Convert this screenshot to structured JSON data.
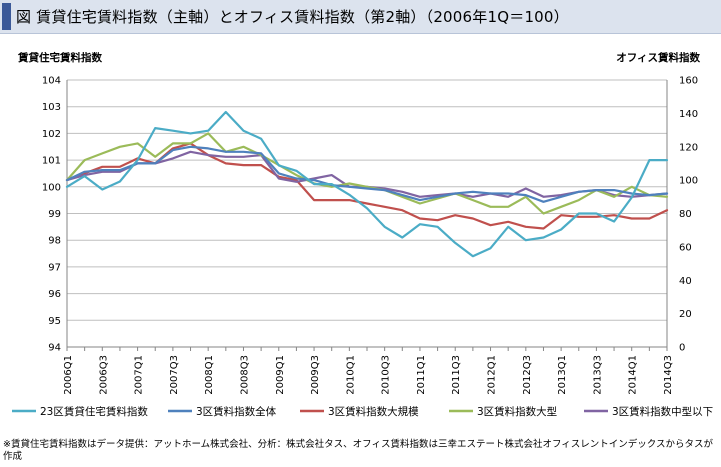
{
  "header": {
    "title": "図 賃貸住宅賃料指数（主軸）とオフィス賃料指数（第2軸）（2006年1Q＝100）"
  },
  "footnote": "※賃貸住宅賃料指数はデータ提供：アットホーム株式会社、分析：株式会社タス、オフィス賃料指数は三幸エステート株式会社オフィスレントインデックスからタスが作成",
  "colors": {
    "23区賃貸住宅賃料指数": "#4bacc6",
    "3区賃料指数全体": "#4f81bd",
    "3区賃料指数大規模": "#c0504d",
    "3区賃料指数大型": "#9bbb59",
    "3区賃料指数中型以下": "#8064a2"
  },
  "chart_data": {
    "type": "line",
    "title": "",
    "ylabel_left": "賃貸住宅賃料指数",
    "ylabel_right": "オフィス賃料指数",
    "ylim_left": [
      94,
      104
    ],
    "ylim_right": [
      0,
      160
    ],
    "yticks_left": [
      94,
      95,
      96,
      97,
      98,
      99,
      100,
      101,
      102,
      103,
      104
    ],
    "yticks_right": [
      0,
      20,
      40,
      60,
      80,
      100,
      120,
      140,
      160
    ],
    "grid": true,
    "legend_position": "bottom",
    "categories": [
      "2006Q1",
      "2006Q2",
      "2006Q3",
      "2006Q4",
      "2007Q1",
      "2007Q2",
      "2007Q3",
      "2007Q4",
      "2008Q1",
      "2008Q2",
      "2008Q3",
      "2008Q4",
      "2009Q1",
      "2009Q2",
      "2009Q3",
      "2009Q4",
      "2010Q1",
      "2010Q2",
      "2010Q3",
      "2010Q4",
      "2011Q1",
      "2011Q2",
      "2011Q3",
      "2011Q4",
      "2012Q1",
      "2012Q2",
      "2012Q3",
      "2012Q4",
      "2013Q1",
      "2013Q2",
      "2013Q3",
      "2013Q4",
      "2014Q1",
      "2014Q2",
      "2014Q3"
    ],
    "tick_labels": [
      "2006Q1",
      "2006Q3",
      "2007Q1",
      "2007Q3",
      "2008Q1",
      "2008Q3",
      "2009Q1",
      "2009Q3",
      "2010Q1",
      "2010Q3",
      "2011Q1",
      "2011Q3",
      "2012Q1",
      "2012Q3",
      "2013Q1",
      "2013Q3",
      "2014Q1",
      "2014Q3"
    ],
    "series": [
      {
        "name": "23区賃貸住宅賃料指数",
        "axis": "left",
        "values": [
          100.0,
          100.4,
          99.9,
          100.2,
          101.0,
          102.2,
          102.1,
          102.0,
          102.1,
          102.8,
          102.1,
          101.8,
          100.8,
          100.6,
          100.1,
          100.1,
          99.7,
          99.2,
          98.5,
          98.1,
          98.6,
          98.5,
          97.9,
          97.4,
          97.7,
          98.5,
          98.0,
          98.1,
          98.4,
          99.0,
          99.0,
          98.7,
          99.6,
          101.0,
          101.0
        ]
      },
      {
        "name": "3区賃料指数全体",
        "axis": "right",
        "values": [
          100,
          105,
          106,
          106,
          110,
          110,
          118,
          120,
          119,
          117,
          117,
          116,
          104,
          101,
          100,
          97,
          96,
          95,
          94,
          91,
          88,
          90,
          92,
          93,
          92,
          92,
          91,
          87,
          90,
          93,
          94,
          94,
          92,
          91,
          92
        ]
      },
      {
        "name": "3区賃料指数大規模",
        "axis": "right",
        "values": [
          100,
          104,
          108,
          108,
          113,
          110,
          119,
          122,
          115,
          110,
          109,
          109,
          102,
          100,
          88,
          88,
          88,
          86,
          84,
          82,
          77,
          76,
          79,
          77,
          73,
          75,
          72,
          71,
          79,
          78,
          78,
          79,
          77,
          77,
          82
        ]
      },
      {
        "name": "3区賃料指数大型",
        "axis": "right",
        "values": [
          100,
          112,
          116,
          120,
          122,
          114,
          122,
          122,
          128,
          117,
          120,
          115,
          109,
          103,
          98,
          96,
          98,
          96,
          94,
          90,
          86,
          89,
          92,
          88,
          84,
          84,
          90,
          80,
          84,
          88,
          94,
          90,
          96,
          91,
          90
        ]
      },
      {
        "name": "3区賃料指数中型以下",
        "axis": "right",
        "values": [
          100,
          103,
          105,
          105,
          110,
          110,
          113,
          117,
          115,
          114,
          114,
          115,
          101,
          99,
          101,
          103,
          96,
          96,
          95,
          93,
          90,
          91,
          92,
          90,
          92,
          90,
          95,
          90,
          91,
          93,
          94,
          91,
          90,
          91,
          92
        ]
      }
    ]
  }
}
